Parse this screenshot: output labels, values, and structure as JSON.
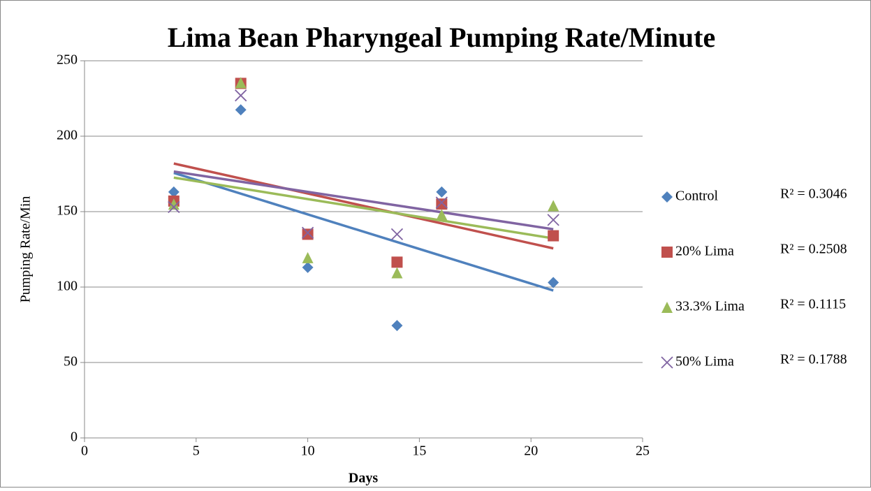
{
  "chart_data": {
    "type": "scatter",
    "title": "Lima Bean Pharyngeal Pumping Rate/Minute",
    "x_label": "Days",
    "y_label": "Pumping Rate/Min",
    "x": [
      4,
      7,
      10,
      14,
      16,
      21
    ],
    "series": [
      {
        "name": "Control",
        "color": "#4f81bd",
        "marker": "diamond",
        "values": [
          163,
          217.5,
          113,
          74.5,
          163,
          103
        ],
        "trendline_label": "R² = 0.3046"
      },
      {
        "name": "20% Lima",
        "color": "#c0504d",
        "marker": "square",
        "values": [
          157,
          235,
          135,
          116.5,
          155,
          134
        ],
        "trendline_label": "R² = 0.2508"
      },
      {
        "name": "33.3% Lima",
        "color": "#9bbb59",
        "marker": "triangle",
        "values": [
          155,
          235.5,
          119.5,
          109.5,
          148,
          154
        ],
        "trendline_label": "R² = 0.1115"
      },
      {
        "name": "50% Lima",
        "color": "#8064a2",
        "marker": "x",
        "values": [
          153,
          227,
          136,
          135,
          156,
          144.5
        ],
        "trendline_label": "R² = 0.1788"
      }
    ],
    "xlim": [
      0,
      25
    ],
    "xticks": [
      0,
      5,
      10,
      15,
      20,
      25
    ],
    "ylim": [
      0,
      250
    ],
    "yticks": [
      0,
      50,
      100,
      150,
      200,
      250
    ],
    "grid": true,
    "trendline": "linear",
    "legend": "right"
  }
}
